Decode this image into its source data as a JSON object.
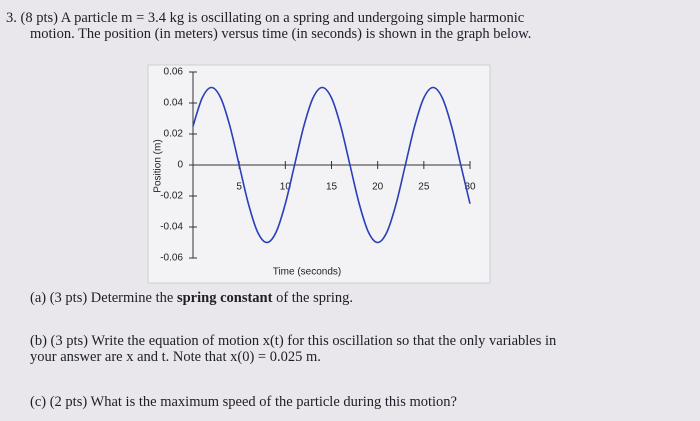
{
  "problem": {
    "lines": [
      "3. (8 pts) A particle m = 3.4 kg is oscillating on a spring and undergoing simple harmonic",
      "motion. The position (in meters) versus time (in seconds) is shown in the graph below."
    ],
    "part_a": {
      "before": "(a) (3 pts) Determine the ",
      "bold": "spring constant",
      "after": " of the spring."
    },
    "part_b": [
      "(b) (3 pts) Write the equation of motion x(t) for this oscillation so that the only variables in",
      "your answer are x and t. Note that x(0) = 0.025 m."
    ],
    "part_c": "(c) (2 pts) What is the maximum speed of the particle during this motion?"
  },
  "chart_data": {
    "type": "line",
    "x_label": "Time (seconds)",
    "y_label": "Position (m)",
    "x": [
      0,
      1,
      2,
      3,
      4,
      5,
      6,
      7,
      8,
      9,
      10,
      11,
      12,
      13,
      14,
      15,
      16,
      17,
      18,
      19,
      20,
      21,
      22,
      23,
      24,
      25,
      26,
      27,
      28,
      29,
      30
    ],
    "series": [
      {
        "color": "#2a3fb8",
        "values": [
          0.025,
          0.0433,
          0.05,
          0.0433,
          0.025,
          0,
          -0.025,
          -0.0433,
          -0.05,
          -0.0433,
          -0.025,
          0,
          0.025,
          0.0433,
          0.05,
          0.0433,
          0.025,
          0,
          -0.025,
          -0.0433,
          -0.05,
          -0.0433,
          -0.025,
          0,
          0.025,
          0.0433,
          0.05,
          0.0433,
          0.025,
          0,
          -0.025
        ]
      }
    ],
    "xlim": [
      0,
      30
    ],
    "xticks": [
      5,
      10,
      15,
      20,
      25,
      30
    ],
    "ylim": [
      -0.06,
      0.06
    ],
    "yticks": [
      0.06,
      0.04,
      0.02,
      0,
      -0.02,
      -0.04,
      -0.06
    ]
  }
}
